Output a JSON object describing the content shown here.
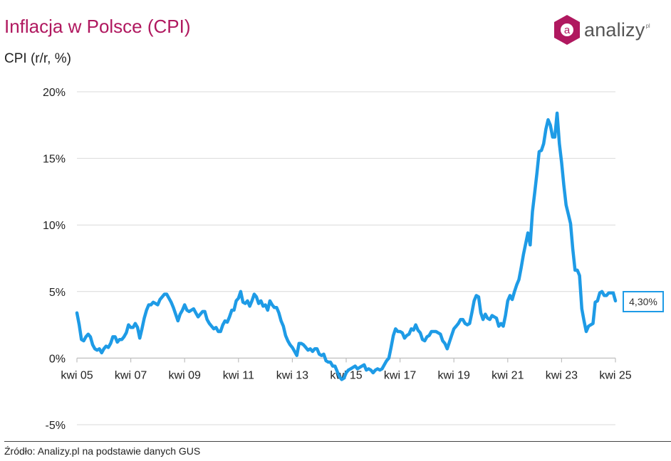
{
  "header": {
    "title": "Inflacja w Polsce (CPI)",
    "subtitle": "CPI (r/r, %)"
  },
  "logo": {
    "icon": "hexagon-a-icon",
    "letter": "a",
    "name": "analizy",
    "suffix": "pl",
    "color": "#b0185f"
  },
  "footer": {
    "source": "Źródło: Analizy.pl na podstawie danych GUS"
  },
  "callout": {
    "label": "4,30%",
    "value": 4.3
  },
  "chart_data": {
    "type": "line",
    "title": "Inflacja w Polsce (CPI)",
    "ylabel": "CPI (r/r, %)",
    "ylim": [
      -5,
      20
    ],
    "yticks": [
      20,
      15,
      10,
      5,
      0,
      -5
    ],
    "ytick_labels": [
      "20%",
      "15%",
      "10%",
      "5%",
      "0%",
      "-5%"
    ],
    "xlim": [
      "2005-04",
      "2025-05"
    ],
    "xticks": [
      "2005-04",
      "2007-04",
      "2009-04",
      "2011-04",
      "2013-04",
      "2015-04",
      "2017-04",
      "2019-04",
      "2021-04",
      "2023-04",
      "2025-04"
    ],
    "xtick_labels": [
      "kwi 05",
      "kwi 07",
      "kwi 09",
      "kwi 11",
      "kwi 13",
      "kwi 15",
      "kwi 17",
      "kwi 19",
      "kwi 21",
      "kwi 23",
      "kwi 25"
    ],
    "grid": true,
    "legend": "none",
    "line_color": "#1e9be6",
    "series": [
      {
        "values": [
          [
            "2005-04",
            3.4
          ],
          [
            "2005-05",
            2.5
          ],
          [
            "2005-06",
            1.4
          ],
          [
            "2005-07",
            1.3
          ],
          [
            "2005-08",
            1.6
          ],
          [
            "2005-09",
            1.8
          ],
          [
            "2005-10",
            1.6
          ],
          [
            "2005-11",
            1.0
          ],
          [
            "2005-12",
            0.7
          ],
          [
            "2006-01",
            0.6
          ],
          [
            "2006-02",
            0.7
          ],
          [
            "2006-03",
            0.4
          ],
          [
            "2006-04",
            0.7
          ],
          [
            "2006-05",
            0.9
          ],
          [
            "2006-06",
            0.8
          ],
          [
            "2006-07",
            1.1
          ],
          [
            "2006-08",
            1.6
          ],
          [
            "2006-09",
            1.6
          ],
          [
            "2006-10",
            1.2
          ],
          [
            "2006-11",
            1.4
          ],
          [
            "2006-12",
            1.4
          ],
          [
            "2007-01",
            1.6
          ],
          [
            "2007-02",
            1.9
          ],
          [
            "2007-03",
            2.5
          ],
          [
            "2007-04",
            2.3
          ],
          [
            "2007-05",
            2.3
          ],
          [
            "2007-06",
            2.6
          ],
          [
            "2007-07",
            2.3
          ],
          [
            "2007-08",
            1.5
          ],
          [
            "2007-09",
            2.2
          ],
          [
            "2007-10",
            3.0
          ],
          [
            "2007-11",
            3.6
          ],
          [
            "2007-12",
            4.0
          ],
          [
            "2008-01",
            4.0
          ],
          [
            "2008-02",
            4.2
          ],
          [
            "2008-03",
            4.1
          ],
          [
            "2008-04",
            4.0
          ],
          [
            "2008-05",
            4.4
          ],
          [
            "2008-06",
            4.6
          ],
          [
            "2008-07",
            4.8
          ],
          [
            "2008-08",
            4.8
          ],
          [
            "2008-09",
            4.5
          ],
          [
            "2008-10",
            4.2
          ],
          [
            "2008-11",
            3.8
          ],
          [
            "2008-12",
            3.3
          ],
          [
            "2009-01",
            2.8
          ],
          [
            "2009-02",
            3.3
          ],
          [
            "2009-03",
            3.6
          ],
          [
            "2009-04",
            4.0
          ],
          [
            "2009-05",
            3.6
          ],
          [
            "2009-06",
            3.5
          ],
          [
            "2009-07",
            3.6
          ],
          [
            "2009-08",
            3.7
          ],
          [
            "2009-09",
            3.4
          ],
          [
            "2009-10",
            3.1
          ],
          [
            "2009-11",
            3.3
          ],
          [
            "2009-12",
            3.5
          ],
          [
            "2010-01",
            3.5
          ],
          [
            "2010-02",
            2.9
          ],
          [
            "2010-03",
            2.6
          ],
          [
            "2010-04",
            2.4
          ],
          [
            "2010-05",
            2.2
          ],
          [
            "2010-06",
            2.3
          ],
          [
            "2010-07",
            2.0
          ],
          [
            "2010-08",
            2.0
          ],
          [
            "2010-09",
            2.5
          ],
          [
            "2010-10",
            2.8
          ],
          [
            "2010-11",
            2.7
          ],
          [
            "2010-12",
            3.1
          ],
          [
            "2011-01",
            3.6
          ],
          [
            "2011-02",
            3.6
          ],
          [
            "2011-03",
            4.3
          ],
          [
            "2011-04",
            4.5
          ],
          [
            "2011-05",
            5.0
          ],
          [
            "2011-06",
            4.2
          ],
          [
            "2011-07",
            4.1
          ],
          [
            "2011-08",
            4.3
          ],
          [
            "2011-09",
            3.9
          ],
          [
            "2011-10",
            4.3
          ],
          [
            "2011-11",
            4.8
          ],
          [
            "2011-12",
            4.6
          ],
          [
            "2012-01",
            4.1
          ],
          [
            "2012-02",
            4.3
          ],
          [
            "2012-03",
            3.9
          ],
          [
            "2012-04",
            4.0
          ],
          [
            "2012-05",
            3.6
          ],
          [
            "2012-06",
            4.3
          ],
          [
            "2012-07",
            4.0
          ],
          [
            "2012-08",
            3.8
          ],
          [
            "2012-09",
            3.8
          ],
          [
            "2012-10",
            3.4
          ],
          [
            "2012-11",
            2.8
          ],
          [
            "2012-12",
            2.4
          ],
          [
            "2013-01",
            1.7
          ],
          [
            "2013-02",
            1.3
          ],
          [
            "2013-03",
            1.0
          ],
          [
            "2013-04",
            0.8
          ],
          [
            "2013-05",
            0.5
          ],
          [
            "2013-06",
            0.2
          ],
          [
            "2013-07",
            1.1
          ],
          [
            "2013-08",
            1.1
          ],
          [
            "2013-09",
            1.0
          ],
          [
            "2013-10",
            0.8
          ],
          [
            "2013-11",
            0.6
          ],
          [
            "2013-12",
            0.7
          ],
          [
            "2014-01",
            0.5
          ],
          [
            "2014-02",
            0.7
          ],
          [
            "2014-03",
            0.7
          ],
          [
            "2014-04",
            0.3
          ],
          [
            "2014-05",
            0.2
          ],
          [
            "2014-06",
            0.3
          ],
          [
            "2014-07",
            -0.2
          ],
          [
            "2014-08",
            -0.3
          ],
          [
            "2014-09",
            -0.3
          ],
          [
            "2014-10",
            -0.6
          ],
          [
            "2014-11",
            -0.6
          ],
          [
            "2014-12",
            -1.0
          ],
          [
            "2015-01",
            -1.4
          ],
          [
            "2015-02",
            -1.6
          ],
          [
            "2015-03",
            -1.5
          ],
          [
            "2015-04",
            -1.1
          ],
          [
            "2015-05",
            -0.9
          ],
          [
            "2015-06",
            -0.8
          ],
          [
            "2015-07",
            -0.7
          ],
          [
            "2015-08",
            -0.6
          ],
          [
            "2015-09",
            -0.8
          ],
          [
            "2015-10",
            -0.7
          ],
          [
            "2015-11",
            -0.6
          ],
          [
            "2015-12",
            -0.5
          ],
          [
            "2016-01",
            -0.9
          ],
          [
            "2016-02",
            -0.8
          ],
          [
            "2016-03",
            -0.9
          ],
          [
            "2016-04",
            -1.1
          ],
          [
            "2016-05",
            -0.9
          ],
          [
            "2016-06",
            -0.8
          ],
          [
            "2016-07",
            -0.9
          ],
          [
            "2016-08",
            -0.8
          ],
          [
            "2016-09",
            -0.5
          ],
          [
            "2016-10",
            -0.2
          ],
          [
            "2016-11",
            0.0
          ],
          [
            "2016-12",
            0.8
          ],
          [
            "2017-01",
            1.7
          ],
          [
            "2017-02",
            2.2
          ],
          [
            "2017-03",
            2.0
          ],
          [
            "2017-04",
            2.0
          ],
          [
            "2017-05",
            1.9
          ],
          [
            "2017-06",
            1.5
          ],
          [
            "2017-07",
            1.7
          ],
          [
            "2017-08",
            1.8
          ],
          [
            "2017-09",
            2.2
          ],
          [
            "2017-10",
            2.1
          ],
          [
            "2017-11",
            2.5
          ],
          [
            "2017-12",
            2.1
          ],
          [
            "2018-01",
            1.9
          ],
          [
            "2018-02",
            1.4
          ],
          [
            "2018-03",
            1.3
          ],
          [
            "2018-04",
            1.6
          ],
          [
            "2018-05",
            1.7
          ],
          [
            "2018-06",
            2.0
          ],
          [
            "2018-07",
            2.0
          ],
          [
            "2018-08",
            2.0
          ],
          [
            "2018-09",
            1.9
          ],
          [
            "2018-10",
            1.8
          ],
          [
            "2018-11",
            1.3
          ],
          [
            "2018-12",
            1.1
          ],
          [
            "2019-01",
            0.7
          ],
          [
            "2019-02",
            1.2
          ],
          [
            "2019-03",
            1.7
          ],
          [
            "2019-04",
            2.2
          ],
          [
            "2019-05",
            2.4
          ],
          [
            "2019-06",
            2.6
          ],
          [
            "2019-07",
            2.9
          ],
          [
            "2019-08",
            2.9
          ],
          [
            "2019-09",
            2.6
          ],
          [
            "2019-10",
            2.5
          ],
          [
            "2019-11",
            2.6
          ],
          [
            "2019-12",
            3.4
          ],
          [
            "2020-01",
            4.3
          ],
          [
            "2020-02",
            4.7
          ],
          [
            "2020-03",
            4.6
          ],
          [
            "2020-04",
            3.4
          ],
          [
            "2020-05",
            2.9
          ],
          [
            "2020-06",
            3.3
          ],
          [
            "2020-07",
            3.0
          ],
          [
            "2020-08",
            2.9
          ],
          [
            "2020-09",
            3.2
          ],
          [
            "2020-10",
            3.1
          ],
          [
            "2020-11",
            3.0
          ],
          [
            "2020-12",
            2.4
          ],
          [
            "2021-01",
            2.6
          ],
          [
            "2021-02",
            2.4
          ],
          [
            "2021-03",
            3.2
          ],
          [
            "2021-04",
            4.3
          ],
          [
            "2021-05",
            4.7
          ],
          [
            "2021-06",
            4.4
          ],
          [
            "2021-07",
            5.0
          ],
          [
            "2021-08",
            5.5
          ],
          [
            "2021-09",
            5.9
          ],
          [
            "2021-10",
            6.8
          ],
          [
            "2021-11",
            7.8
          ],
          [
            "2021-12",
            8.6
          ],
          [
            "2022-01",
            9.4
          ],
          [
            "2022-02",
            8.5
          ],
          [
            "2022-03",
            11.0
          ],
          [
            "2022-04",
            12.4
          ],
          [
            "2022-05",
            13.9
          ],
          [
            "2022-06",
            15.5
          ],
          [
            "2022-07",
            15.6
          ],
          [
            "2022-08",
            16.1
          ],
          [
            "2022-09",
            17.2
          ],
          [
            "2022-10",
            17.9
          ],
          [
            "2022-11",
            17.5
          ],
          [
            "2022-12",
            16.6
          ],
          [
            "2023-01",
            16.6
          ],
          [
            "2023-02",
            18.4
          ],
          [
            "2023-03",
            16.1
          ],
          [
            "2023-04",
            14.7
          ],
          [
            "2023-05",
            13.0
          ],
          [
            "2023-06",
            11.5
          ],
          [
            "2023-07",
            10.8
          ],
          [
            "2023-08",
            10.1
          ],
          [
            "2023-09",
            8.2
          ],
          [
            "2023-10",
            6.6
          ],
          [
            "2023-11",
            6.6
          ],
          [
            "2023-12",
            6.2
          ],
          [
            "2024-01",
            3.7
          ],
          [
            "2024-02",
            2.8
          ],
          [
            "2024-03",
            2.0
          ],
          [
            "2024-04",
            2.4
          ],
          [
            "2024-05",
            2.5
          ],
          [
            "2024-06",
            2.6
          ],
          [
            "2024-07",
            4.2
          ],
          [
            "2024-08",
            4.3
          ],
          [
            "2024-09",
            4.9
          ],
          [
            "2024-10",
            5.0
          ],
          [
            "2024-11",
            4.7
          ],
          [
            "2024-12",
            4.7
          ],
          [
            "2025-01",
            4.9
          ],
          [
            "2025-02",
            4.9
          ],
          [
            "2025-03",
            4.9
          ],
          [
            "2025-04",
            4.3
          ]
        ]
      }
    ]
  }
}
